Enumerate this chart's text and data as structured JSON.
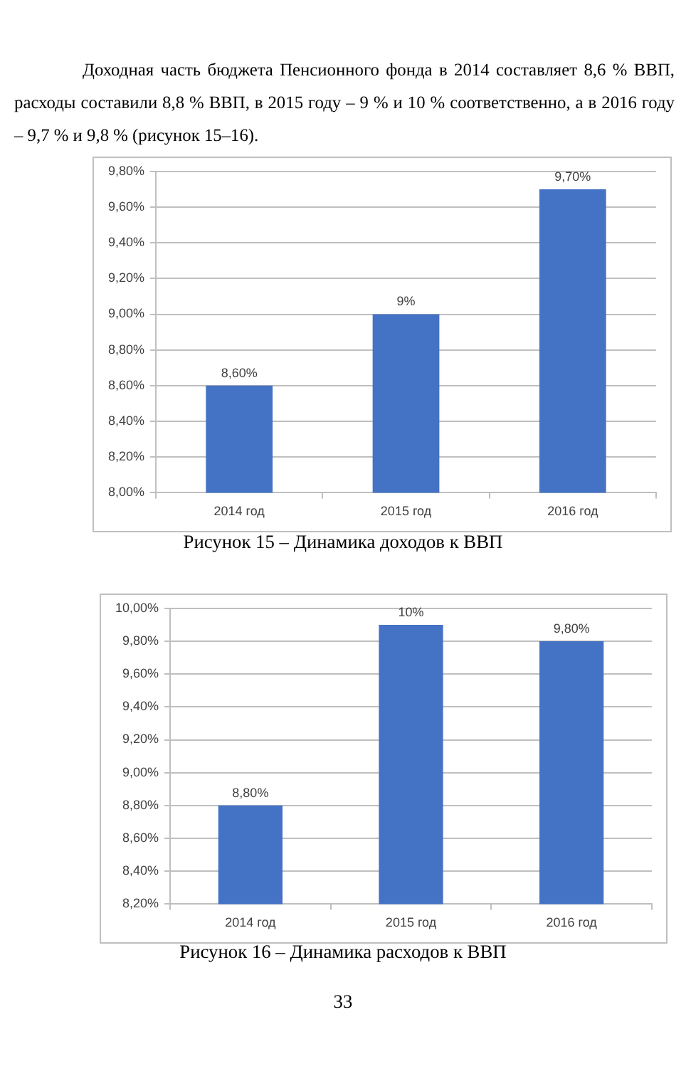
{
  "chart_data": [
    {
      "type": "bar",
      "categories": [
        "2014 год",
        "2015 год",
        "2016 год"
      ],
      "values": [
        8.6,
        9.0,
        9.7
      ],
      "color": "#4472c4",
      "value_labels": [
        "8,60%",
        "9%",
        "9,70%"
      ],
      "ylim": [
        8.0,
        9.8
      ],
      "yticks": [
        {
          "value": 8.0,
          "label": "8,00%"
        },
        {
          "value": 8.2,
          "label": "8,20%"
        },
        {
          "value": 8.4,
          "label": "8,40%"
        },
        {
          "value": 8.6,
          "label": "8,60%"
        },
        {
          "value": 8.8,
          "label": "8,80%"
        },
        {
          "value": 9.0,
          "label": "9,00%"
        },
        {
          "value": 9.2,
          "label": "9,20%"
        },
        {
          "value": 9.4,
          "label": "9,40%"
        },
        {
          "value": 9.6,
          "label": "9,60%"
        },
        {
          "value": 9.8,
          "label": "9,80%"
        }
      ],
      "grid": "y",
      "annotations": [
        "Доходная часть бюджета Пенсионного фонда в 2014 составляет 8,6 % ВВП, расходы составили 8,8 % ВВП, в 2015 году – 9 % и 10 % соответственно, а в 2016 году – 9,7 % и 9,8 % (рисунок 15–16).",
        "Рисунок 15 – Динамика доходов к ВВП"
      ]
    },
    {
      "type": "bar",
      "categories": [
        "2014 год",
        "2015 год",
        "2016 год"
      ],
      "values": [
        8.8,
        9.9,
        9.8
      ],
      "color": "#4472c4",
      "value_labels": [
        "8,80%",
        "10%",
        "9,80%"
      ],
      "ylim": [
        8.2,
        10.0
      ],
      "yticks": [
        {
          "value": 8.2,
          "label": "8,20%"
        },
        {
          "value": 8.4,
          "label": "8,40%"
        },
        {
          "value": 8.6,
          "label": "8,60%"
        },
        {
          "value": 8.8,
          "label": "8,80%"
        },
        {
          "value": 9.0,
          "label": "9,00%"
        },
        {
          "value": 9.2,
          "label": "9,20%"
        },
        {
          "value": 9.4,
          "label": "9,40%"
        },
        {
          "value": 9.6,
          "label": "9,60%"
        },
        {
          "value": 9.8,
          "label": "9,80%"
        },
        {
          "value": 10.0,
          "label": "10,00%"
        }
      ],
      "grid": "y",
      "annotations": [
        "Рисунок 16 – Динамика расходов к ВВП",
        "33"
      ]
    }
  ]
}
